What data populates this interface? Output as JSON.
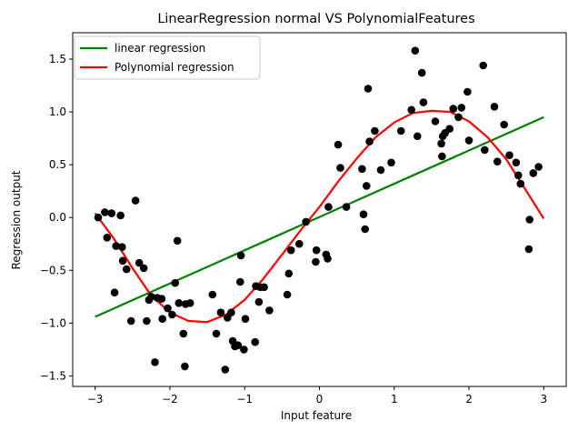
{
  "chart_data": {
    "type": "scatter",
    "title": "LinearRegression normal VS PolynomialFeatures",
    "xlabel": "Input feature",
    "ylabel": "Regression output",
    "xlim": [
      -3.3,
      3.3
    ],
    "ylim": [
      -1.6,
      1.75
    ],
    "xticks": [
      -3,
      -2,
      -1,
      0,
      1,
      2,
      3
    ],
    "yticks": [
      -1.5,
      -1.0,
      -0.5,
      0.0,
      0.5,
      1.0,
      1.5
    ],
    "xtick_labels": [
      "−3",
      "−2",
      "−1",
      "0",
      "1",
      "2",
      "3"
    ],
    "ytick_labels": [
      "−1.5",
      "−1.0",
      "−0.5",
      "0.0",
      "0.5",
      "1.0",
      "1.5"
    ],
    "grid": false,
    "legend_position": "upper-left",
    "series": [
      {
        "name": "linear regression",
        "kind": "line",
        "color": "#008000",
        "x": [
          -3,
          3
        ],
        "y": [
          -0.94,
          0.95
        ]
      },
      {
        "name": "Polynomial regression",
        "kind": "line",
        "color": "#ff0000",
        "x": [
          -3.0,
          -2.75,
          -2.5,
          -2.25,
          -2.0,
          -1.75,
          -1.5,
          -1.25,
          -1.0,
          -0.75,
          -0.5,
          -0.25,
          0.0,
          0.25,
          0.5,
          0.75,
          1.0,
          1.25,
          1.5,
          1.75,
          2.0,
          2.25,
          2.5,
          2.75,
          3.0
        ],
        "y": [
          0.04,
          -0.2,
          -0.48,
          -0.74,
          -0.9,
          -0.98,
          -0.99,
          -0.92,
          -0.78,
          -0.58,
          -0.35,
          -0.12,
          0.1,
          0.34,
          0.56,
          0.76,
          0.9,
          0.99,
          1.01,
          1.0,
          0.91,
          0.76,
          0.55,
          0.27,
          -0.01
        ]
      },
      {
        "name": "",
        "kind": "points",
        "color": "#000000",
        "x": [
          -2.96,
          -2.87,
          -2.84,
          -2.78,
          -2.74,
          -2.72,
          -2.66,
          -2.64,
          -2.63,
          -2.58,
          -2.52,
          -2.46,
          -2.41,
          -2.35,
          -2.31,
          -2.28,
          -2.25,
          -2.2,
          -2.17,
          -2.11,
          -2.1,
          -2.03,
          -1.97,
          -1.93,
          -1.9,
          -1.88,
          -1.82,
          -1.8,
          -1.79,
          -1.73,
          -1.43,
          -1.38,
          -1.32,
          -1.26,
          -1.23,
          -1.18,
          -1.16,
          -1.13,
          -1.09,
          -1.06,
          -1.05,
          -1.01,
          -0.99,
          -0.86,
          -0.85,
          -0.81,
          -0.79,
          -0.74,
          -0.67,
          -0.43,
          -0.41,
          -0.38,
          -0.27,
          -0.18,
          -0.05,
          -0.04,
          0.09,
          0.11,
          0.12,
          0.25,
          0.28,
          0.36,
          0.57,
          0.59,
          0.61,
          0.63,
          0.65,
          0.67,
          0.74,
          0.82,
          0.96,
          1.09,
          1.23,
          1.28,
          1.31,
          1.37,
          1.39,
          1.55,
          1.63,
          1.64,
          1.65,
          1.68,
          1.74,
          1.79,
          1.86,
          1.9,
          1.98,
          2.0,
          2.19,
          2.21,
          2.34,
          2.38,
          2.47,
          2.54,
          2.63,
          2.66,
          2.69,
          2.8,
          2.81,
          2.86,
          2.93
        ],
        "y": [
          0.0,
          0.05,
          -0.19,
          0.04,
          -0.71,
          -0.27,
          0.02,
          -0.28,
          -0.41,
          -0.49,
          -0.98,
          0.16,
          -0.43,
          -0.48,
          -0.98,
          -0.78,
          -0.75,
          -1.37,
          -0.76,
          -0.77,
          -0.96,
          -0.86,
          -0.92,
          -0.62,
          -0.22,
          -0.81,
          -1.1,
          -1.41,
          -0.82,
          -0.81,
          -0.73,
          -1.1,
          -0.9,
          -1.44,
          -0.95,
          -0.9,
          -1.17,
          -1.22,
          -1.21,
          -0.61,
          -0.36,
          -1.25,
          -0.96,
          -1.18,
          -0.65,
          -0.8,
          -0.66,
          -0.66,
          -0.88,
          -0.73,
          -0.53,
          -0.31,
          -0.25,
          -0.04,
          -0.42,
          -0.31,
          -0.35,
          -0.39,
          0.1,
          0.69,
          0.47,
          0.1,
          0.46,
          0.03,
          -0.11,
          0.3,
          1.22,
          0.72,
          0.82,
          0.45,
          0.52,
          0.82,
          1.02,
          1.58,
          0.77,
          1.37,
          1.09,
          0.91,
          0.7,
          0.58,
          0.77,
          0.8,
          0.84,
          1.03,
          0.95,
          1.04,
          1.19,
          0.73,
          1.44,
          0.64,
          1.05,
          0.53,
          0.88,
          0.59,
          0.52,
          0.4,
          0.32,
          -0.3,
          -0.02,
          0.42,
          0.48
        ]
      }
    ]
  }
}
